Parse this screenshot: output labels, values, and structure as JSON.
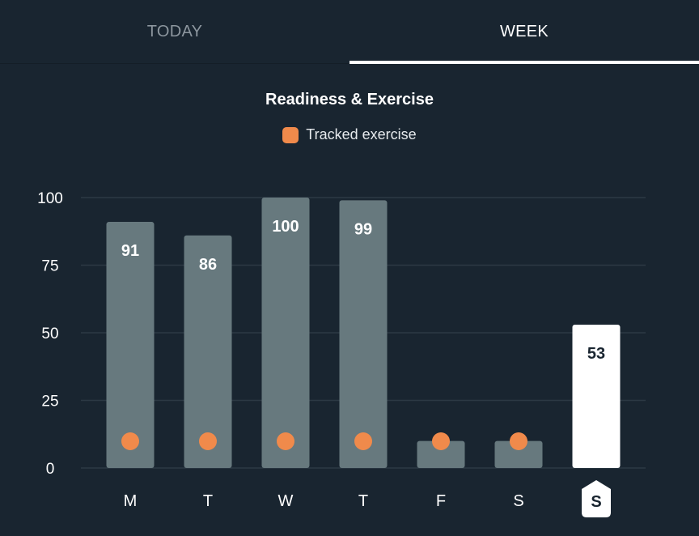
{
  "tabs": [
    {
      "label": "TODAY",
      "active": false
    },
    {
      "label": "WEEK",
      "active": true
    }
  ],
  "colors": {
    "background": "#192530",
    "bar": "#67797e",
    "bar_current": "#ffffff",
    "exercise_marker": "#f08a4b",
    "grid": "#2c3944"
  },
  "chart_data": {
    "type": "bar",
    "title": "Readiness & Exercise",
    "legend": [
      {
        "name": "Tracked exercise",
        "color": "#f08a4b",
        "placement": "top-center"
      }
    ],
    "categories": [
      "M",
      "T",
      "W",
      "T",
      "F",
      "S",
      "S"
    ],
    "values": [
      91,
      86,
      100,
      99,
      10,
      10,
      53
    ],
    "value_labels": [
      "91",
      "86",
      "100",
      "99",
      "",
      "",
      "53"
    ],
    "tracked_exercise": [
      true,
      true,
      true,
      true,
      true,
      true,
      false
    ],
    "current_index": 6,
    "y_ticks": [
      0,
      25,
      50,
      75,
      100
    ],
    "ylim": [
      0,
      100
    ],
    "grid": true
  }
}
